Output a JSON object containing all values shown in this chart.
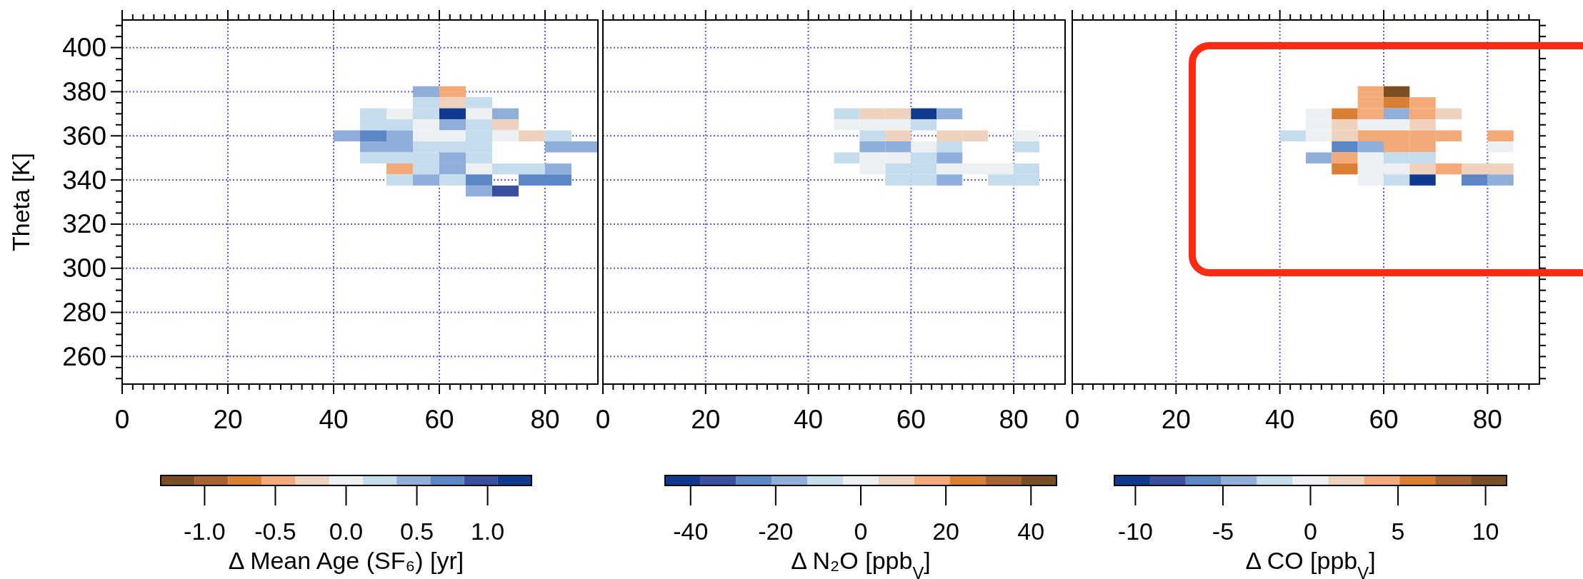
{
  "chart_data": [
    {
      "type": "scatter",
      "marker": "square",
      "ylabel": "Theta [K]",
      "clabel": "Δ Mean Age (SF₆) [yr]",
      "grid": true,
      "xlim": [
        0,
        90
      ],
      "ylim": [
        247.5,
        412.5
      ],
      "xticks": [
        0,
        {
          "value": 2,
          "label": null
        },
        {
          "value": 4,
          "label": null
        },
        {
          "value": 6,
          "label": null
        },
        {
          "value": 8,
          "label": null
        },
        {
          "value": 10,
          "label": null
        },
        {
          "value": 12,
          "label": null
        },
        {
          "value": 14,
          "label": null
        },
        {
          "value": 16,
          "label": null
        },
        {
          "value": 18,
          "label": null
        },
        20,
        {
          "value": 22,
          "label": null
        },
        {
          "value": 24,
          "label": null
        },
        {
          "value": 26,
          "label": null
        },
        {
          "value": 28,
          "label": null
        },
        {
          "value": 30,
          "label": null
        },
        {
          "value": 32,
          "label": null
        },
        {
          "value": 34,
          "label": null
        },
        {
          "value": 36,
          "label": null
        },
        {
          "value": 38,
          "label": null
        },
        40,
        {
          "value": 42,
          "label": null
        },
        {
          "value": 44,
          "label": null
        },
        {
          "value": 46,
          "label": null
        },
        {
          "value": 48,
          "label": null
        },
        {
          "value": 50,
          "label": null
        },
        {
          "value": 52,
          "label": null
        },
        {
          "value": 54,
          "label": null
        },
        {
          "value": 56,
          "label": null
        },
        {
          "value": 58,
          "label": null
        },
        60,
        {
          "value": 62,
          "label": null
        },
        {
          "value": 64,
          "label": null
        },
        {
          "value": 66,
          "label": null
        },
        {
          "value": 68,
          "label": null
        },
        {
          "value": 70,
          "label": null
        },
        {
          "value": 72,
          "label": null
        },
        {
          "value": 74,
          "label": null
        },
        {
          "value": 76,
          "label": null
        },
        {
          "value": 78,
          "label": null
        },
        80,
        {
          "value": 82,
          "label": null
        },
        {
          "value": 84,
          "label": null
        },
        {
          "value": 86,
          "label": null
        },
        {
          "value": 88,
          "label": null
        }
      ],
      "yticks": [
        {
          "value": 250,
          "label": null
        },
        {
          "value": 255,
          "label": null
        },
        260,
        {
          "value": 265,
          "label": null
        },
        {
          "value": 270,
          "label": null
        },
        {
          "value": 275,
          "label": null
        },
        280,
        {
          "value": 285,
          "label": null
        },
        {
          "value": 290,
          "label": null
        },
        {
          "value": 295,
          "label": null
        },
        300,
        {
          "value": 305,
          "label": null
        },
        {
          "value": 310,
          "label": null
        },
        {
          "value": 315,
          "label": null
        },
        320,
        {
          "value": 325,
          "label": null
        },
        {
          "value": 330,
          "label": null
        },
        {
          "value": 335,
          "label": null
        },
        340,
        {
          "value": 345,
          "label": null
        },
        {
          "value": 350,
          "label": null
        },
        {
          "value": 355,
          "label": null
        },
        360,
        {
          "value": 365,
          "label": null
        },
        {
          "value": 370,
          "label": null
        },
        {
          "value": 375,
          "label": null
        },
        380,
        {
          "value": 385,
          "label": null
        },
        {
          "value": 390,
          "label": null
        },
        {
          "value": 395,
          "label": null
        },
        400,
        {
          "value": 405,
          "label": null
        },
        {
          "value": 410,
          "label": null
        }
      ],
      "clim": [
        -1.31,
        1.31
      ],
      "cticks": [
        {
          "value": -1,
          "label": "-1.0"
        },
        {
          "value": -0.5,
          "label": "-0.5"
        },
        {
          "value": 0,
          "label": "0.0"
        },
        {
          "value": 0.5,
          "label": "0.5"
        },
        {
          "value": 1,
          "label": "1.0"
        }
      ],
      "colors": [
        "#8fafda",
        "#f4a978",
        "#c5dcec",
        "#efd2bd",
        "#c5dcec",
        "#c5dcec",
        "#ecf0f3",
        "#c5dcec",
        "#103a8f",
        "#ecf0f3",
        "#8fafda",
        "#c5dcec",
        "#c5dcec",
        "#ecf0f3",
        "#8fafda",
        "#c5dcec",
        "#efd2bd",
        "#8fafda",
        "#5b87c5",
        "#8fafda",
        "#ecf0f3",
        "#ecf0f3",
        "#c5dcec",
        "#ecf0f3",
        "#efd2bd",
        "#c5dcec",
        "#8fafda",
        "#8fafda",
        "#c5dcec",
        "#c5dcec",
        "#c5dcec",
        "#8fafda",
        "#8fafda",
        "#c5dcec",
        "#c5dcec",
        "#c5dcec",
        "#8fafda",
        "#c5dcec",
        "#f4a978",
        "#c5dcec",
        "#8fafda",
        "#ecf0f3",
        "#c5dcec",
        "#c5dcec",
        "#8fafda",
        "#c5dcec",
        "#8fafda",
        "#c5dcec",
        "#5b87c5",
        "#5b87c5",
        "#5b87c5",
        "#8fafda",
        "#3a4f9e"
      ],
      "x": [
        57.5,
        62.5,
        57.5,
        62.5,
        67.5,
        47.5,
        52.5,
        57.5,
        62.5,
        67.5,
        72.5,
        47.5,
        52.5,
        57.5,
        62.5,
        67.5,
        72.5,
        42.5,
        47.5,
        52.5,
        57.5,
        62.5,
        67.5,
        72.5,
        77.5,
        82.5,
        47.5,
        52.5,
        57.5,
        62.5,
        67.5,
        82.5,
        87.5,
        47.5,
        52.5,
        57.5,
        62.5,
        67.5,
        52.5,
        57.5,
        62.5,
        67.5,
        72.5,
        77.5,
        82.5,
        52.5,
        57.5,
        62.5,
        67.5,
        77.5,
        82.5,
        67.5,
        72.5
      ],
      "values": [
        380,
        380,
        375,
        375,
        375,
        370,
        370,
        370,
        370,
        370,
        370,
        365,
        365,
        365,
        365,
        365,
        365,
        360,
        360,
        360,
        360,
        360,
        360,
        360,
        360,
        360,
        355,
        355,
        355,
        355,
        355,
        355,
        355,
        350,
        350,
        350,
        350,
        350,
        345,
        345,
        345,
        345,
        345,
        345,
        345,
        340,
        340,
        340,
        340,
        340,
        340,
        335,
        335
      ],
      "cvalues": [
        0.48,
        -0.48,
        0.24,
        -0.24,
        0.24,
        0.24,
        0,
        0.24,
        1.19,
        0,
        0.48,
        0.24,
        0.24,
        0,
        0.48,
        0.24,
        -0.24,
        0.48,
        0.71,
        0.48,
        0,
        0,
        0.24,
        0,
        -0.24,
        0.24,
        0.48,
        0.48,
        0.24,
        0.24,
        0.24,
        0.48,
        0.48,
        0.24,
        0.24,
        0.24,
        0.48,
        0.24,
        -0.48,
        0.24,
        0.48,
        0,
        0.24,
        0.24,
        0.48,
        0.24,
        0.48,
        0.24,
        0.71,
        0.71,
        0.71,
        0.48,
        0.95
      ]
    },
    {
      "type": "scatter",
      "marker": "square",
      "clabel": "Δ N₂O [ppb$_{V}$]",
      "grid": true,
      "tick_labels": "x",
      "xlim": [
        0,
        90
      ],
      "ylim": [
        247.5,
        412.5
      ],
      "xticks": [
        0,
        {
          "value": 2,
          "label": null
        },
        {
          "value": 4,
          "label": null
        },
        {
          "value": 6,
          "label": null
        },
        {
          "value": 8,
          "label": null
        },
        {
          "value": 10,
          "label": null
        },
        {
          "value": 12,
          "label": null
        },
        {
          "value": 14,
          "label": null
        },
        {
          "value": 16,
          "label": null
        },
        {
          "value": 18,
          "label": null
        },
        20,
        {
          "value": 22,
          "label": null
        },
        {
          "value": 24,
          "label": null
        },
        {
          "value": 26,
          "label": null
        },
        {
          "value": 28,
          "label": null
        },
        {
          "value": 30,
          "label": null
        },
        {
          "value": 32,
          "label": null
        },
        {
          "value": 34,
          "label": null
        },
        {
          "value": 36,
          "label": null
        },
        {
          "value": 38,
          "label": null
        },
        40,
        {
          "value": 42,
          "label": null
        },
        {
          "value": 44,
          "label": null
        },
        {
          "value": 46,
          "label": null
        },
        {
          "value": 48,
          "label": null
        },
        {
          "value": 50,
          "label": null
        },
        {
          "value": 52,
          "label": null
        },
        {
          "value": 54,
          "label": null
        },
        {
          "value": 56,
          "label": null
        },
        {
          "value": 58,
          "label": null
        },
        60,
        {
          "value": 62,
          "label": null
        },
        {
          "value": 64,
          "label": null
        },
        {
          "value": 66,
          "label": null
        },
        {
          "value": 68,
          "label": null
        },
        {
          "value": 70,
          "label": null
        },
        {
          "value": 72,
          "label": null
        },
        {
          "value": 74,
          "label": null
        },
        {
          "value": 76,
          "label": null
        },
        {
          "value": 78,
          "label": null
        },
        80,
        {
          "value": 82,
          "label": null
        },
        {
          "value": 84,
          "label": null
        },
        {
          "value": 86,
          "label": null
        },
        {
          "value": 88,
          "label": null
        }
      ],
      "yticks": [
        260,
        280,
        300,
        320,
        340,
        360,
        380,
        400
      ],
      "clim": [
        -46,
        46
      ],
      "cticks": [
        -40,
        -20,
        0,
        20,
        40
      ],
      "colors": [
        "#c5dcec",
        "#efd2bd",
        "#efd2bd",
        "#103a8f",
        "#8fafda",
        "#ecf0f3",
        "#ecf0f3",
        "#ecf0f3",
        "#c5dcec",
        "#c5dcec",
        "#efd2bd",
        "#efd2bd",
        "#efd2bd",
        "#ecf0f3",
        "#8fafda",
        "#8fafda",
        "#ecf0f3",
        "#c5dcec",
        "#c5dcec",
        "#c5dcec",
        "#ecf0f3",
        "#ecf0f3",
        "#c5dcec",
        "#8fafda",
        "#ecf0f3",
        "#c5dcec",
        "#c5dcec",
        "#ecf0f3",
        "#ecf0f3",
        "#ecf0f3",
        "#c5dcec",
        "#c5dcec",
        "#c5dcec",
        "#8fafda",
        "#c5dcec",
        "#c5dcec"
      ],
      "x": [
        47.5,
        52.5,
        57.5,
        62.5,
        67.5,
        47.5,
        52.5,
        57.5,
        62.5,
        52.5,
        57.5,
        67.5,
        72.5,
        82.5,
        52.5,
        57.5,
        62.5,
        67.5,
        82.5,
        47.5,
        52.5,
        57.5,
        62.5,
        67.5,
        52.5,
        57.5,
        62.5,
        67.5,
        72.5,
        77.5,
        82.5,
        57.5,
        62.5,
        67.5,
        77.5,
        82.5
      ],
      "values": [
        370,
        370,
        370,
        370,
        370,
        365,
        365,
        365,
        365,
        360,
        360,
        360,
        360,
        360,
        355,
        355,
        355,
        355,
        355,
        350,
        350,
        350,
        350,
        350,
        345,
        345,
        345,
        345,
        345,
        345,
        345,
        340,
        340,
        340,
        340,
        340
      ],
      "cvalues": [
        -8.4,
        8.4,
        8.4,
        -41.8,
        -16.7,
        0,
        0,
        0,
        -8.4,
        -8.4,
        8.4,
        8.4,
        8.4,
        0,
        -16.7,
        -16.7,
        0,
        -8.4,
        -8.4,
        -8.4,
        0,
        0,
        -8.4,
        -16.7,
        0,
        -8.4,
        -8.4,
        0,
        0,
        0,
        -8.4,
        -8.4,
        -8.4,
        -16.7,
        -8.4,
        -8.4
      ]
    },
    {
      "type": "scatter",
      "marker": "square",
      "clabel": "Δ CO [ppb$_{V}$]",
      "grid": true,
      "tick_labels": "x",
      "xlim": [
        0,
        90
      ],
      "ylim": [
        247.5,
        412.5
      ],
      "xticks": [
        0,
        {
          "value": 2,
          "label": null
        },
        {
          "value": 4,
          "label": null
        },
        {
          "value": 6,
          "label": null
        },
        {
          "value": 8,
          "label": null
        },
        {
          "value": 10,
          "label": null
        },
        {
          "value": 12,
          "label": null
        },
        {
          "value": 14,
          "label": null
        },
        {
          "value": 16,
          "label": null
        },
        {
          "value": 18,
          "label": null
        },
        20,
        {
          "value": 22,
          "label": null
        },
        {
          "value": 24,
          "label": null
        },
        {
          "value": 26,
          "label": null
        },
        {
          "value": 28,
          "label": null
        },
        {
          "value": 30,
          "label": null
        },
        {
          "value": 32,
          "label": null
        },
        {
          "value": 34,
          "label": null
        },
        {
          "value": 36,
          "label": null
        },
        {
          "value": 38,
          "label": null
        },
        40,
        {
          "value": 42,
          "label": null
        },
        {
          "value": 44,
          "label": null
        },
        {
          "value": 46,
          "label": null
        },
        {
          "value": 48,
          "label": null
        },
        {
          "value": 50,
          "label": null
        },
        {
          "value": 52,
          "label": null
        },
        {
          "value": 54,
          "label": null
        },
        {
          "value": 56,
          "label": null
        },
        {
          "value": 58,
          "label": null
        },
        60,
        {
          "value": 62,
          "label": null
        },
        {
          "value": 64,
          "label": null
        },
        {
          "value": 66,
          "label": null
        },
        {
          "value": 68,
          "label": null
        },
        {
          "value": 70,
          "label": null
        },
        {
          "value": 72,
          "label": null
        },
        {
          "value": 74,
          "label": null
        },
        {
          "value": 76,
          "label": null
        },
        {
          "value": 78,
          "label": null
        },
        80,
        {
          "value": 82,
          "label": null
        },
        {
          "value": 84,
          "label": null
        },
        {
          "value": 86,
          "label": null
        },
        {
          "value": 88,
          "label": null
        }
      ],
      "yticks": [
        {
          "value": 250,
          "label": null
        },
        {
          "value": 255,
          "label": null
        },
        {
          "value": 260,
          "label": null
        },
        {
          "value": 265,
          "label": null
        },
        {
          "value": 270,
          "label": null
        },
        {
          "value": 275,
          "label": null
        },
        {
          "value": 280,
          "label": null
        },
        {
          "value": 285,
          "label": null
        },
        {
          "value": 290,
          "label": null
        },
        {
          "value": 295,
          "label": null
        },
        {
          "value": 300,
          "label": null
        },
        {
          "value": 305,
          "label": null
        },
        {
          "value": 310,
          "label": null
        },
        {
          "value": 315,
          "label": null
        },
        {
          "value": 320,
          "label": null
        },
        {
          "value": 325,
          "label": null
        },
        {
          "value": 330,
          "label": null
        },
        {
          "value": 335,
          "label": null
        },
        {
          "value": 340,
          "label": null
        },
        {
          "value": 345,
          "label": null
        },
        {
          "value": 350,
          "label": null
        },
        {
          "value": 355,
          "label": null
        },
        {
          "value": 360,
          "label": null
        },
        {
          "value": 365,
          "label": null
        },
        {
          "value": 370,
          "label": null
        },
        {
          "value": 375,
          "label": null
        },
        {
          "value": 380,
          "label": null
        },
        {
          "value": 385,
          "label": null
        },
        {
          "value": 390,
          "label": null
        },
        {
          "value": 395,
          "label": null
        },
        {
          "value": 400,
          "label": null
        },
        {
          "value": 405,
          "label": null
        },
        {
          "value": 410,
          "label": null
        }
      ],
      "clim": [
        -11.2,
        11.2
      ],
      "cticks": [
        -10,
        -5,
        0,
        5,
        10
      ],
      "colors": [
        "#f4a978",
        "#7b4f22",
        "#f4a978",
        "#d97f33",
        "#f4a978",
        "#ecf0f3",
        "#d97f33",
        "#f4a978",
        "#8fafda",
        "#f4a978",
        "#efd2bd",
        "#ecf0f3",
        "#efd2bd",
        "#ecf0f3",
        "#ecf0f3",
        "#efd2bd",
        "#c5dcec",
        "#ecf0f3",
        "#efd2bd",
        "#f4a978",
        "#f4a978",
        "#f4a978",
        "#f4a978",
        "#f4a978",
        "#5b87c5",
        "#8fafda",
        "#f4a978",
        "#f4a978",
        "#ecf0f3",
        "#8fafda",
        "#f4a978",
        "#ecf0f3",
        "#c5dcec",
        "#c5dcec",
        "#d97f33",
        "#ecf0f3",
        "#ecf0f3",
        "#efd2bd",
        "#f4a978",
        "#efd2bd",
        "#efd2bd",
        "#ecf0f3",
        "#c5dcec",
        "#103a8f",
        "#5b87c5",
        "#8fafda"
      ],
      "x": [
        57.5,
        62.5,
        57.5,
        62.5,
        67.5,
        47.5,
        52.5,
        57.5,
        62.5,
        67.5,
        72.5,
        47.5,
        52.5,
        57.5,
        62.5,
        67.5,
        42.5,
        47.5,
        52.5,
        57.5,
        62.5,
        67.5,
        72.5,
        82.5,
        52.5,
        57.5,
        62.5,
        67.5,
        82.5,
        47.5,
        52.5,
        57.5,
        62.5,
        67.5,
        52.5,
        57.5,
        62.5,
        67.5,
        72.5,
        77.5,
        82.5,
        57.5,
        62.5,
        67.5,
        77.5,
        82.5
      ],
      "values": [
        380,
        380,
        375,
        375,
        375,
        370,
        370,
        370,
        370,
        370,
        370,
        365,
        365,
        365,
        365,
        365,
        360,
        360,
        360,
        360,
        360,
        360,
        360,
        360,
        355,
        355,
        355,
        355,
        355,
        350,
        350,
        350,
        350,
        350,
        345,
        345,
        345,
        345,
        345,
        345,
        345,
        340,
        340,
        340,
        340,
        340
      ],
      "cvalues": [
        4.1,
        10.2,
        4.1,
        6.1,
        4.1,
        0,
        6.1,
        4.1,
        -4.1,
        4.1,
        2.0,
        0,
        2.0,
        0,
        0,
        2.0,
        -2.0,
        0,
        2.0,
        4.1,
        4.1,
        4.1,
        4.1,
        4.1,
        -6.1,
        -4.1,
        4.1,
        4.1,
        0,
        -4.1,
        4.1,
        0,
        -2.0,
        -2.0,
        6.1,
        0,
        0,
        2.0,
        4.1,
        2.0,
        2.0,
        0,
        -2.0,
        -10.2,
        -6.1,
        -4.1
      ]
    }
  ]
}
